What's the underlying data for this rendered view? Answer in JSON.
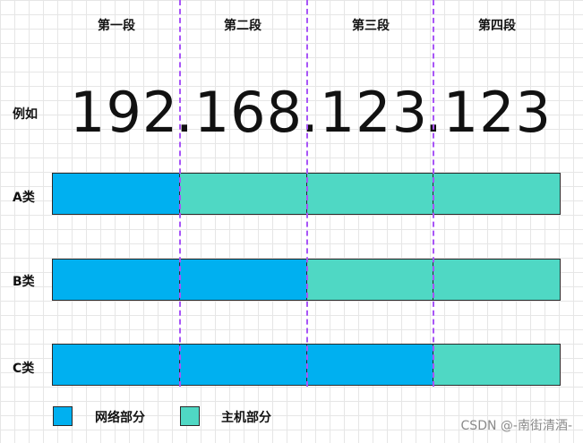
{
  "colors": {
    "network": "#00b0f0",
    "host": "#4fd8c4",
    "divider": "#a855f7"
  },
  "headers": [
    "第一段",
    "第二段",
    "第三段",
    "第四段"
  ],
  "example": {
    "label": "例如",
    "octets": [
      "192",
      ".168",
      ".123",
      ".123"
    ]
  },
  "rows": [
    {
      "label": "A类",
      "network_octets": 1
    },
    {
      "label": "B类",
      "network_octets": 2
    },
    {
      "label": "C类",
      "network_octets": 3
    }
  ],
  "legend": {
    "network_label": "网络部分",
    "host_label": "主机部分"
  },
  "watermark": "CSDN @-南街清酒-"
}
